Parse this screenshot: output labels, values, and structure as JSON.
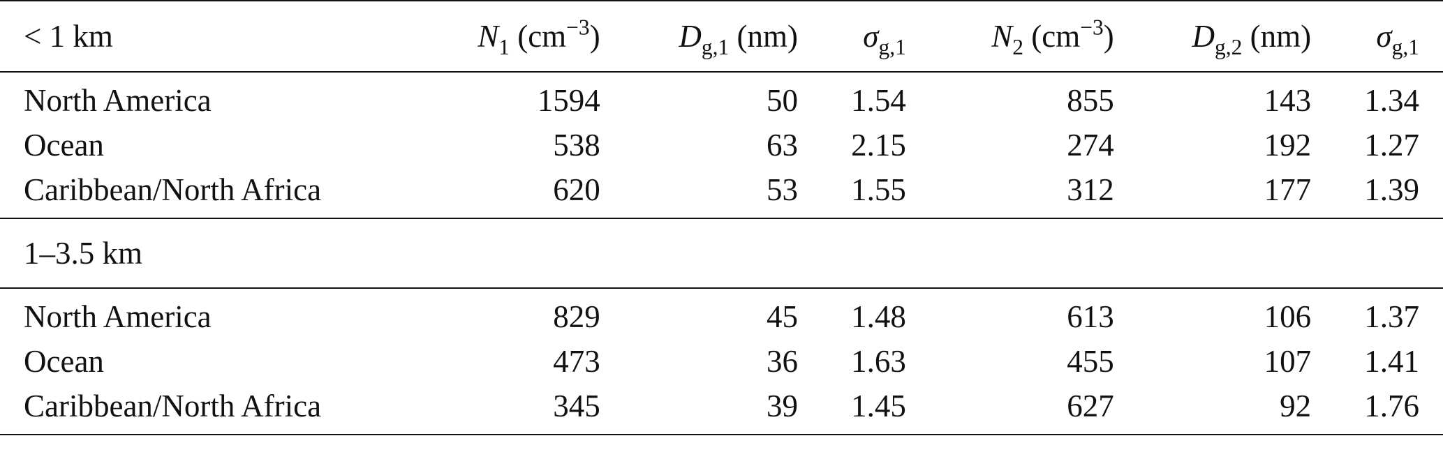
{
  "header": {
    "section_label": "< 1 km",
    "col1": {
      "sym": "N",
      "sub": "1",
      "unit_pre": " (cm",
      "sup": "−3",
      "unit_post": ")"
    },
    "col2": {
      "sym": "D",
      "sub": "g,1",
      "unit": " (nm)"
    },
    "col3": {
      "sym": "σ",
      "sub": "g,1"
    },
    "col4": {
      "sym": "N",
      "sub": "2",
      "unit_pre": " (cm",
      "sup": "−3",
      "unit_post": ")"
    },
    "col5": {
      "sym": "D",
      "sub": "g,2",
      "unit": " (nm)"
    },
    "col6": {
      "sym": "σ",
      "sub": "g,1"
    }
  },
  "sections": [
    {
      "label": "< 1 km",
      "rows": [
        {
          "region": "North America",
          "n1": "1594",
          "dg1": "50",
          "sg1": "1.54",
          "n2": "855",
          "dg2": "143",
          "sg2": "1.34"
        },
        {
          "region": "Ocean",
          "n1": "538",
          "dg1": "63",
          "sg1": "2.15",
          "n2": "274",
          "dg2": "192",
          "sg2": "1.27"
        },
        {
          "region": "Caribbean/North Africa",
          "n1": "620",
          "dg1": "53",
          "sg1": "1.55",
          "n2": "312",
          "dg2": "177",
          "sg2": "1.39"
        }
      ]
    },
    {
      "label": "1–3.5 km",
      "rows": [
        {
          "region": "North America",
          "n1": "829",
          "dg1": "45",
          "sg1": "1.48",
          "n2": "613",
          "dg2": "106",
          "sg2": "1.37"
        },
        {
          "region": "Ocean",
          "n1": "473",
          "dg1": "36",
          "sg1": "1.63",
          "n2": "455",
          "dg2": "107",
          "sg2": "1.41"
        },
        {
          "region": "Caribbean/North Africa",
          "n1": "345",
          "dg1": "39",
          "sg1": "1.45",
          "n2": "627",
          "dg2": "92",
          "sg2": "1.76"
        }
      ]
    }
  ]
}
